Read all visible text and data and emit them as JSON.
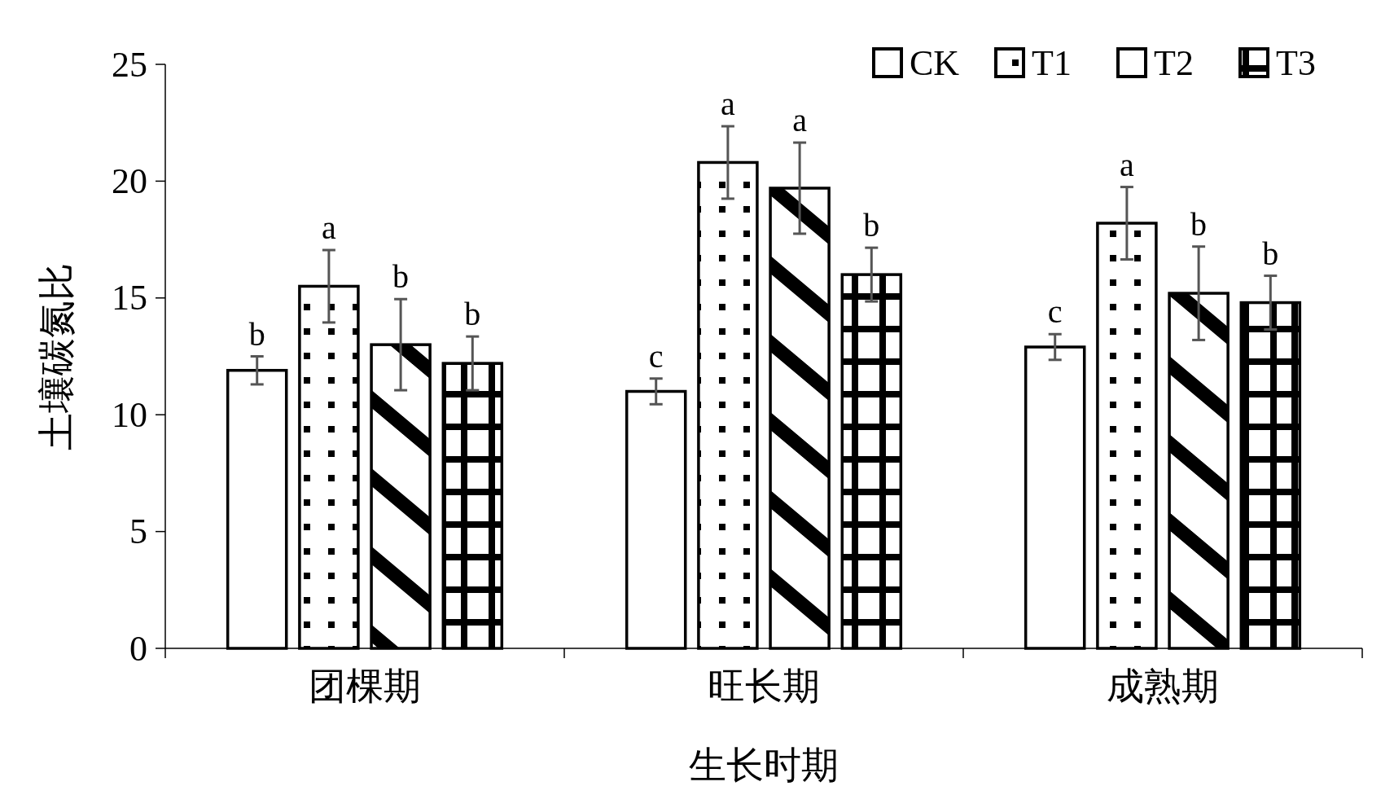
{
  "chart_data": {
    "type": "bar",
    "xlabel": "生长时期",
    "ylabel": "土壤碳氮比",
    "categories": [
      "团棵期",
      "旺长期",
      "成熟期"
    ],
    "series": [
      {
        "name": "CK",
        "color": "#ffffff",
        "values": [
          11.9,
          11.0,
          12.9
        ],
        "errors": [
          0.6,
          0.55,
          0.55
        ],
        "value_labels": [
          "b",
          "c",
          "c"
        ]
      },
      {
        "name": "T1",
        "color": "#000000",
        "values": [
          15.5,
          20.8,
          18.2
        ],
        "errors": [
          1.55,
          1.55,
          1.55
        ],
        "value_labels": [
          "a",
          "a",
          "a"
        ]
      },
      {
        "name": "T2",
        "color": "#000000",
        "values": [
          13.0,
          19.7,
          15.2
        ],
        "errors": [
          1.95,
          1.95,
          2.0
        ],
        "value_labels": [
          "b",
          "a",
          "b"
        ]
      },
      {
        "name": "T3",
        "color": "#000000",
        "values": [
          12.2,
          16.0,
          14.8
        ],
        "errors": [
          1.15,
          1.15,
          1.15
        ],
        "value_labels": [
          "b",
          "b",
          "b"
        ]
      }
    ],
    "ylim": [
      0,
      25
    ],
    "yticks": [
      0,
      5,
      10,
      15,
      20,
      25
    ],
    "grid": false,
    "legend": "top right"
  }
}
